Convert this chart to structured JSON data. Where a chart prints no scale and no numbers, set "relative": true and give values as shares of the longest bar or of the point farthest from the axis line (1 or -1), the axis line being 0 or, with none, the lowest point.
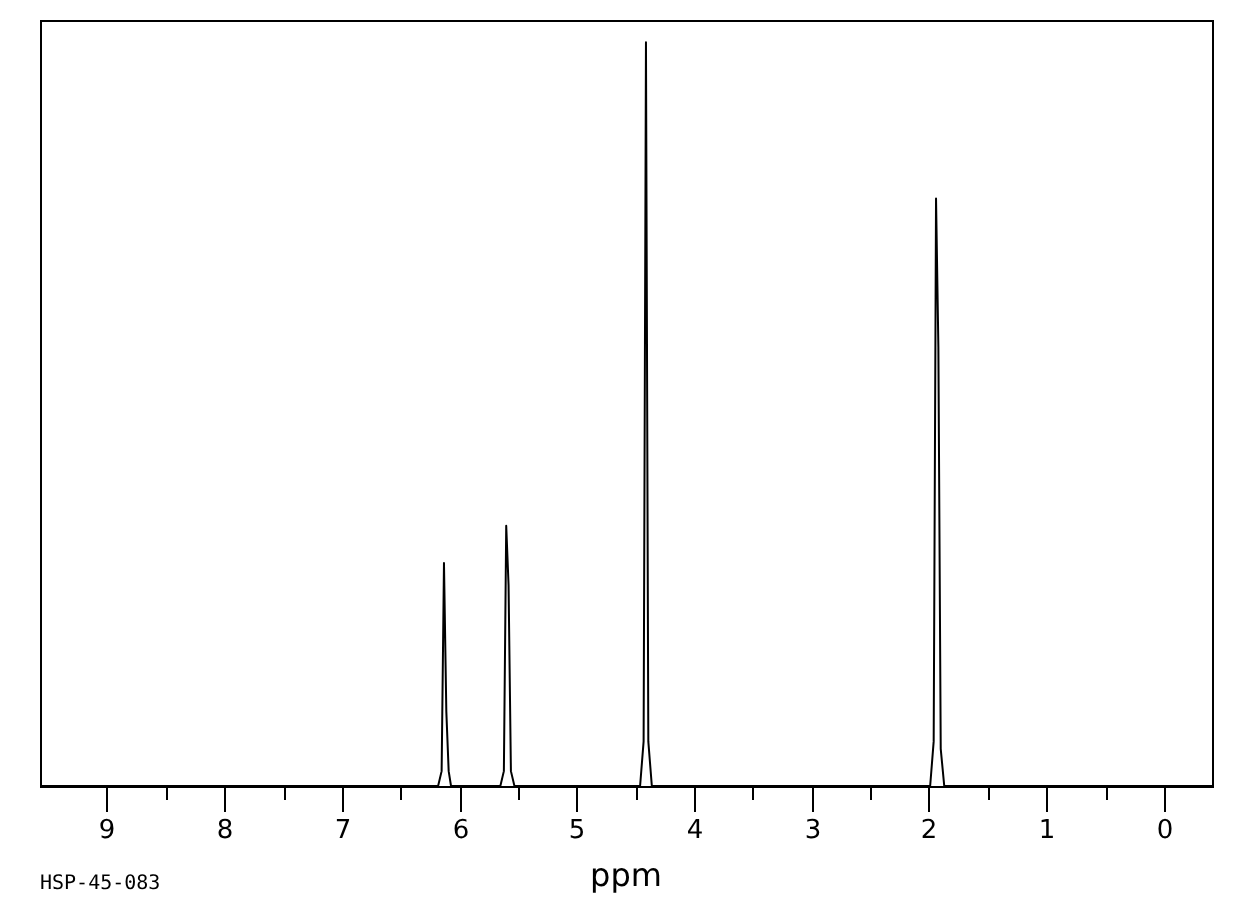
{
  "chart_data": {
    "type": "line",
    "relative": true,
    "xlabel": "ppm",
    "annotations": [
      "HSP-45-083"
    ],
    "xlim": [
      9.57,
      -0.41
    ],
    "xticks": [
      9,
      {
        "value": 8.5,
        "label": null
      },
      8,
      {
        "value": 7.5,
        "label": null
      },
      7,
      {
        "value": 6.5,
        "label": null
      },
      6,
      {
        "value": 5.5,
        "label": null
      },
      5,
      {
        "value": 4.5,
        "label": null
      },
      4,
      {
        "value": 3.5,
        "label": null
      },
      3,
      {
        "value": 2.5,
        "label": null
      },
      2,
      {
        "value": 1.5,
        "label": null
      },
      1,
      {
        "value": 0.5,
        "label": null
      },
      0
    ],
    "marker": "none",
    "line_style": "solid",
    "legend": false,
    "grid": false,
    "series": [
      {
        "color": "#000000",
        "x": [
          9.57,
          6.18,
          6.15,
          6.13,
          6.11,
          6.09,
          6.07,
          5.65,
          5.62,
          5.6,
          5.58,
          5.56,
          5.53,
          4.46,
          4.43,
          4.41,
          4.39,
          4.36,
          1.99,
          1.96,
          1.94,
          1.92,
          1.9,
          1.87,
          -0.41
        ],
        "values": [
          0,
          0,
          0.02,
          0.3,
          0.1,
          0.02,
          0,
          0,
          0.02,
          0.35,
          0.27,
          0.02,
          0,
          0,
          0.06,
          1,
          0.06,
          0,
          0,
          0.06,
          0.79,
          0.59,
          0.05,
          0,
          0
        ]
      }
    ]
  }
}
